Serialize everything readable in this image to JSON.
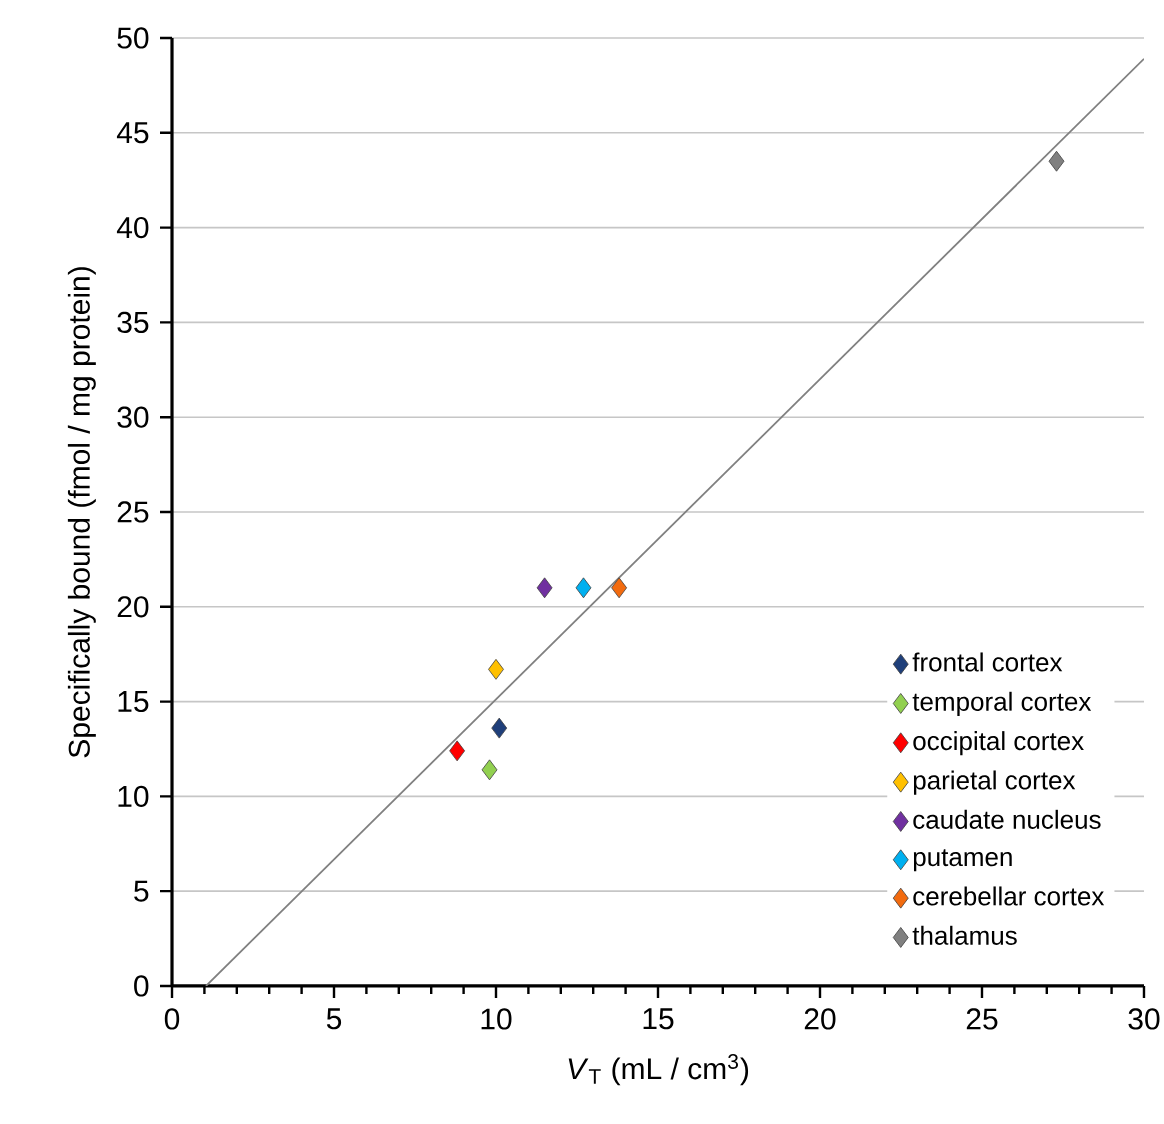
{
  "chart_data": {
    "type": "scatter",
    "xlabel": "*V*$_{T}$  (mL / cm$^{3}$)",
    "ylabel": "Specifically bound (fmol / mg protein)",
    "xlim": [
      0,
      30
    ],
    "ylim": [
      0,
      50
    ],
    "xticks": [
      0,
      5,
      10,
      15,
      20,
      25,
      30
    ],
    "yticks": [
      0,
      5,
      10,
      15,
      20,
      25,
      30,
      35,
      40,
      45,
      50
    ],
    "grid": "y",
    "legend": "bottom right",
    "marker": "diamond",
    "series": [
      {
        "type": "line",
        "marker": "none",
        "color": "#808080",
        "x": [
          1.05,
          30
        ],
        "values": [
          0,
          48.9
        ]
      },
      {
        "name": "frontal cortex",
        "color": "#1f3f7a",
        "x": [
          10.1
        ],
        "values": [
          13.6
        ]
      },
      {
        "name": "temporal cortex",
        "color": "#92d050",
        "x": [
          9.8
        ],
        "values": [
          11.4
        ]
      },
      {
        "name": "occipital cortex",
        "color": "#ff0000",
        "x": [
          8.8
        ],
        "values": [
          12.4
        ]
      },
      {
        "name": "parietal cortex",
        "color": "#ffc000",
        "x": [
          10.0
        ],
        "values": [
          16.7
        ]
      },
      {
        "name": "caudate nucleus",
        "color": "#7030a0",
        "x": [
          11.5
        ],
        "values": [
          21.0
        ]
      },
      {
        "name": "putamen",
        "color": "#00b0f0",
        "x": [
          12.7
        ],
        "values": [
          21.0
        ]
      },
      {
        "name": "cerebellar cortex",
        "color": "#f26b0f",
        "x": [
          13.8
        ],
        "values": [
          21.0
        ]
      },
      {
        "name": "thalamus",
        "color": "#808080",
        "x": [
          27.3
        ],
        "values": [
          43.5
        ]
      }
    ]
  }
}
